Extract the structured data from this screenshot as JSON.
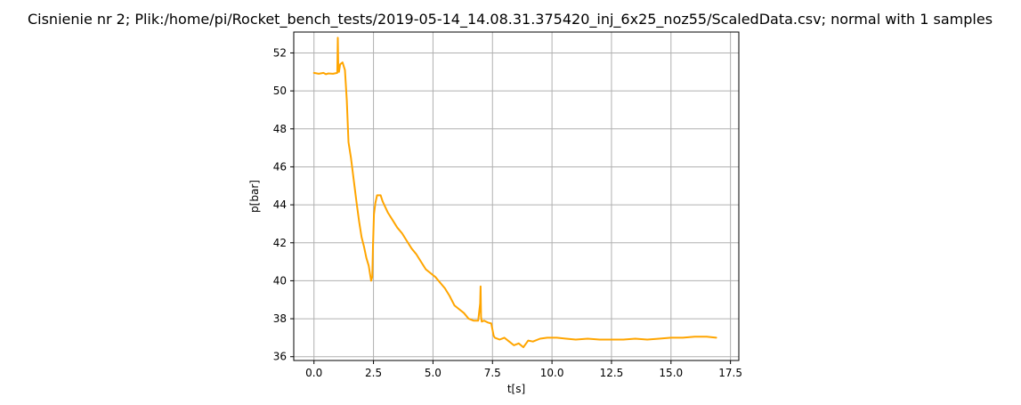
{
  "chart_data": {
    "type": "line",
    "title": "Cisnienie nr 2; Plik:/home/pi/Rocket_bench_tests/2019-05-14_14.08.31.375420_inj_6x25_noz55/ScaledData.csv; normal with 1 samples",
    "xlabel": "t[s]",
    "ylabel": "p[bar]",
    "xlim": [
      -0.85,
      17.85
    ],
    "ylim": [
      35.8,
      53.1
    ],
    "xticks": [
      0.0,
      2.5,
      5.0,
      7.5,
      10.0,
      12.5,
      15.0,
      17.5
    ],
    "xtick_labels": [
      "0.0",
      "2.5",
      "5.0",
      "7.5",
      "10.0",
      "12.5",
      "15.0",
      "17.5"
    ],
    "yticks": [
      36,
      38,
      40,
      42,
      44,
      46,
      48,
      50,
      52
    ],
    "ytick_labels": [
      "36",
      "38",
      "40",
      "42",
      "44",
      "46",
      "48",
      "50",
      "52"
    ],
    "grid": true,
    "color": "#ffa500",
    "series": [
      {
        "x": [
          0.0,
          0.2,
          0.4,
          0.5,
          0.6,
          0.8,
          0.98,
          1.0,
          1.02,
          1.05,
          1.1,
          1.2,
          1.3,
          1.38,
          1.45,
          1.55,
          1.7,
          1.8,
          1.9,
          2.0,
          2.1,
          2.2,
          2.3,
          2.4,
          2.45,
          2.48,
          2.52,
          2.58,
          2.65,
          2.7,
          2.8,
          2.88,
          2.95,
          3.1,
          3.3,
          3.5,
          3.7,
          3.9,
          4.1,
          4.3,
          4.5,
          4.7,
          4.9,
          5.1,
          5.3,
          5.5,
          5.7,
          5.9,
          6.1,
          6.3,
          6.5,
          6.7,
          6.9,
          6.98,
          7.0,
          7.02,
          7.05,
          7.15,
          7.3,
          7.45,
          7.55,
          7.6,
          7.8,
          8.0,
          8.2,
          8.4,
          8.6,
          8.8,
          9.0,
          9.2,
          9.5,
          9.8,
          10.2,
          10.6,
          11.0,
          11.5,
          12.0,
          12.5,
          13.0,
          13.5,
          14.0,
          14.5,
          15.0,
          15.5,
          16.0,
          16.5,
          16.9
        ],
        "y": [
          50.95,
          50.9,
          50.95,
          50.88,
          50.92,
          50.9,
          50.95,
          52.8,
          51.3,
          51.0,
          51.4,
          51.5,
          51.1,
          49.5,
          47.3,
          46.5,
          45.0,
          44.0,
          43.1,
          42.3,
          41.8,
          41.2,
          40.8,
          40.0,
          40.2,
          41.8,
          43.5,
          44.1,
          44.5,
          44.5,
          44.5,
          44.2,
          44.0,
          43.6,
          43.2,
          42.8,
          42.5,
          42.1,
          41.7,
          41.4,
          41.0,
          40.6,
          40.4,
          40.2,
          39.9,
          39.6,
          39.2,
          38.7,
          38.5,
          38.3,
          38.0,
          37.9,
          37.9,
          38.8,
          39.7,
          38.1,
          37.85,
          37.9,
          37.8,
          37.75,
          37.1,
          37.0,
          36.9,
          37.0,
          36.8,
          36.6,
          36.7,
          36.5,
          36.85,
          36.8,
          36.95,
          37.0,
          37.0,
          36.95,
          36.9,
          36.95,
          36.9,
          36.9,
          36.9,
          36.95,
          36.9,
          36.95,
          37.0,
          37.0,
          37.05,
          37.05,
          37.0
        ]
      }
    ]
  }
}
